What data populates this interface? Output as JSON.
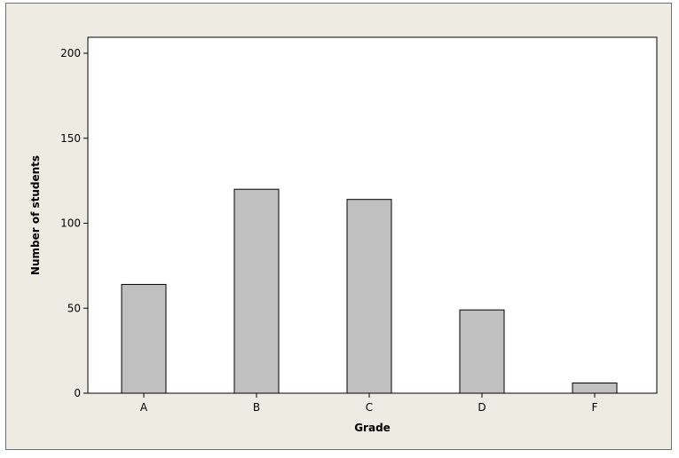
{
  "chart_data": {
    "type": "bar",
    "categories": [
      "A",
      "B",
      "C",
      "D",
      "F"
    ],
    "values": [
      64,
      120,
      114,
      49,
      6
    ],
    "xlabel": "Grade",
    "ylabel": "Number of students",
    "ylim": [
      0,
      200
    ],
    "yticks": [
      0,
      50,
      100,
      150,
      200
    ],
    "grid": false,
    "colors": {
      "bar_fill": "#c0c0c0",
      "bar_stroke": "#000000",
      "plot_bg": "#ffffff",
      "outer_bg": "#eeebe3"
    }
  }
}
